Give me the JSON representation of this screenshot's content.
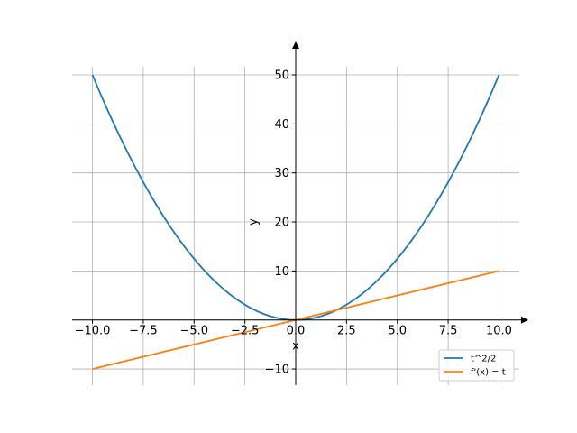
{
  "chart_data": {
    "type": "line",
    "title": "",
    "xlabel": "x",
    "ylabel": "y",
    "xlim": [
      -11,
      11
    ],
    "ylim": [
      -13.3,
      54.6
    ],
    "xticks": [
      -10.0,
      -7.5,
      -5.0,
      -2.5,
      0.0,
      2.5,
      5.0,
      7.5,
      10.0
    ],
    "xtick_labels": [
      "−10.0",
      "−7.5",
      "−5.0",
      "−2.5",
      "0.0",
      "2.5",
      "5.0",
      "7.5",
      "10.0"
    ],
    "yticks": [
      -10,
      0,
      10,
      20,
      30,
      40,
      50
    ],
    "ytick_labels": [
      "−10",
      "0",
      "10",
      "20",
      "30",
      "40",
      "50"
    ],
    "grid": true,
    "axes_through_origin": true,
    "legend_position": "lower-right",
    "series": [
      {
        "name": "t^2/2",
        "color": "#1f77b4",
        "function": "quadratic-half",
        "x": [
          -10,
          -9,
          -8,
          -7,
          -6,
          -5,
          -4,
          -3,
          -2,
          -1,
          0,
          1,
          2,
          3,
          4,
          5,
          6,
          7,
          8,
          9,
          10
        ],
        "y": [
          50,
          40.5,
          32,
          24.5,
          18,
          12.5,
          8,
          4.5,
          2,
          0.5,
          0,
          0.5,
          2,
          4.5,
          8,
          12.5,
          18,
          24.5,
          32,
          40.5,
          50
        ]
      },
      {
        "name": "f'(x) = t",
        "color": "#ff7f0e",
        "function": "linear",
        "x": [
          -10,
          10
        ],
        "y": [
          -10,
          10
        ]
      }
    ]
  }
}
